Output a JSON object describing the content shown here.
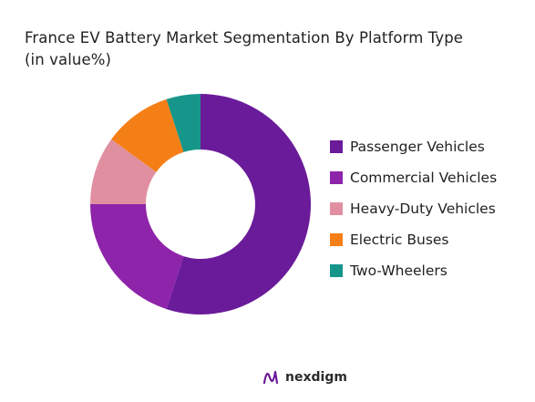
{
  "chart_data": {
    "type": "pie",
    "title_line1": "France EV Battery Market Segmentation By Platform Type",
    "title_line2": "(in value%)",
    "categories": [
      "Passenger Vehicles",
      "Commercial Vehicles",
      "Heavy-Duty Vehicles",
      "Electric Buses",
      "Two-Wheelers"
    ],
    "values": [
      55,
      20,
      10,
      10,
      5
    ],
    "colors": [
      "#6a1b9a",
      "#8e24aa",
      "#e08fa1",
      "#f57f17",
      "#16968a"
    ],
    "donut": true,
    "legend_position": "right"
  },
  "brand": {
    "name": "nexdigm",
    "logo_icon": "nexdigm-logo-icon",
    "logo_color": "#6a1b9a"
  }
}
